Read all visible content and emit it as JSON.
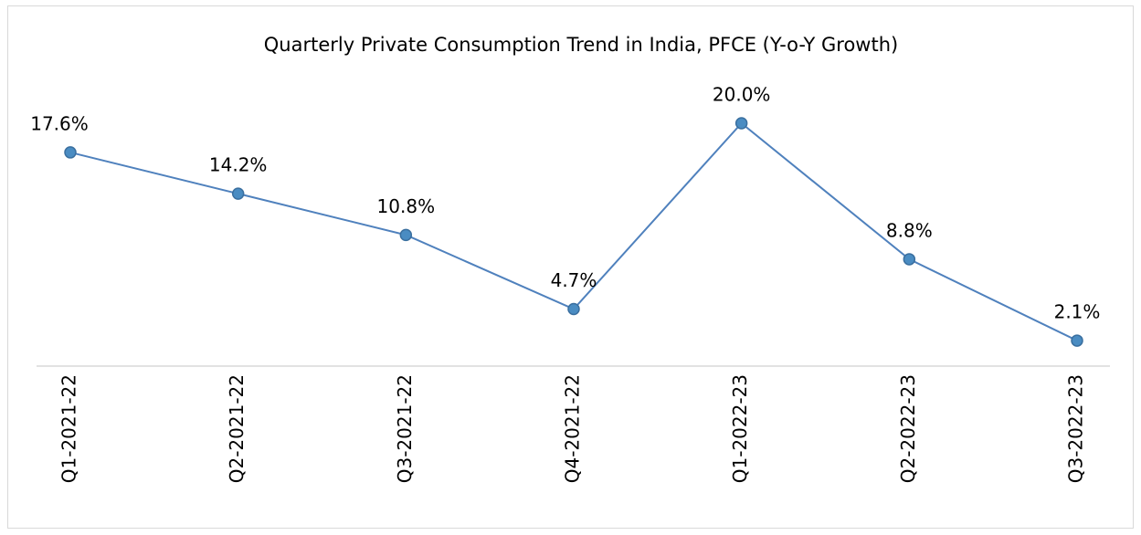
{
  "chart_data": {
    "type": "line",
    "title": "Quarterly Private Consumption Trend in India, PFCE (Y-o-Y Growth)",
    "categories": [
      "Q1-2021-22",
      "Q2-2021-22",
      "Q3-2021-22",
      "Q4-2021-22",
      "Q1-2022-23",
      "Q2-2022-23",
      "Q3-2022-23"
    ],
    "values": [
      17.6,
      14.2,
      10.8,
      4.7,
      20.0,
      8.8,
      2.1
    ],
    "value_labels": [
      "17.6%",
      "14.2%",
      "10.8%",
      "4.7%",
      "20.0%",
      "8.8%",
      "2.1%"
    ],
    "color": "#4f81bd",
    "ylim": [
      0,
      20
    ]
  }
}
